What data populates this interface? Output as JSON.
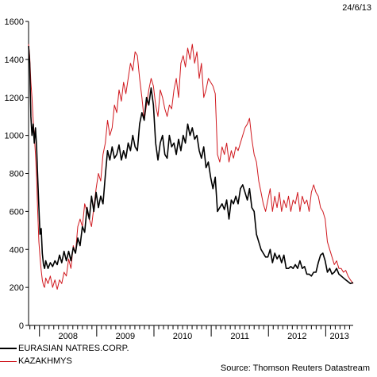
{
  "date_label": "24/6/13",
  "source": "Source: Thomson Reuters Datastream",
  "colors": {
    "series1": "#000000",
    "series2": "#d0181e"
  },
  "chart_data": {
    "type": "line",
    "title": "",
    "xlabel": "",
    "ylabel": "",
    "ylim": [
      0,
      1600
    ],
    "yticks": [
      0,
      200,
      400,
      600,
      800,
      1000,
      1200,
      1400,
      1600
    ],
    "xlim": [
      2007.81,
      2013.48
    ],
    "x_tick_labels": [
      "2008",
      "2009",
      "2010",
      "2011",
      "2012",
      "2013"
    ],
    "x_tick_positions": [
      2008.0,
      2009.0,
      2010.0,
      2011.0,
      2012.0,
      2013.0
    ],
    "grid": false,
    "legend": "bottom-left",
    "series": [
      {
        "name": "EURASIAN NATRES.CORP.",
        "color": "#000000",
        "points": [
          [
            2007.81,
            1470
          ],
          [
            2007.83,
            1380
          ],
          [
            2007.85,
            1100
          ],
          [
            2007.87,
            1000
          ],
          [
            2007.89,
            1060
          ],
          [
            2007.91,
            960
          ],
          [
            2007.93,
            1040
          ],
          [
            2007.95,
            940
          ],
          [
            2007.97,
            780
          ],
          [
            2007.99,
            620
          ],
          [
            2008.01,
            480
          ],
          [
            2008.03,
            510
          ],
          [
            2008.05,
            380
          ],
          [
            2008.07,
            320
          ],
          [
            2008.09,
            300
          ],
          [
            2008.11,
            340
          ],
          [
            2008.15,
            300
          ],
          [
            2008.19,
            330
          ],
          [
            2008.23,
            310
          ],
          [
            2008.27,
            340
          ],
          [
            2008.31,
            320
          ],
          [
            2008.35,
            370
          ],
          [
            2008.39,
            330
          ],
          [
            2008.43,
            390
          ],
          [
            2008.47,
            340
          ],
          [
            2008.51,
            390
          ],
          [
            2008.55,
            340
          ],
          [
            2008.59,
            410
          ],
          [
            2008.63,
            380
          ],
          [
            2008.67,
            460
          ],
          [
            2008.71,
            420
          ],
          [
            2008.75,
            520
          ],
          [
            2008.79,
            490
          ],
          [
            2008.83,
            620
          ],
          [
            2008.87,
            560
          ],
          [
            2008.91,
            680
          ],
          [
            2008.95,
            600
          ],
          [
            2008.99,
            700
          ],
          [
            2009.03,
            620
          ],
          [
            2009.07,
            680
          ],
          [
            2009.11,
            640
          ],
          [
            2009.15,
            790
          ],
          [
            2009.19,
            920
          ],
          [
            2009.23,
            870
          ],
          [
            2009.27,
            940
          ],
          [
            2009.31,
            880
          ],
          [
            2009.35,
            900
          ],
          [
            2009.39,
            950
          ],
          [
            2009.43,
            870
          ],
          [
            2009.47,
            920
          ],
          [
            2009.51,
            880
          ],
          [
            2009.55,
            960
          ],
          [
            2009.59,
            920
          ],
          [
            2009.63,
            1000
          ],
          [
            2009.67,
            940
          ],
          [
            2009.71,
            920
          ],
          [
            2009.75,
            1060
          ],
          [
            2009.79,
            1120
          ],
          [
            2009.83,
            1080
          ],
          [
            2009.87,
            1200
          ],
          [
            2009.91,
            1160
          ],
          [
            2009.95,
            1250
          ],
          [
            2009.99,
            1160
          ],
          [
            2010.03,
            960
          ],
          [
            2010.07,
            870
          ],
          [
            2010.11,
            960
          ],
          [
            2010.15,
            1000
          ],
          [
            2010.19,
            900
          ],
          [
            2010.23,
            880
          ],
          [
            2010.27,
            1000
          ],
          [
            2010.31,
            940
          ],
          [
            2010.35,
            960
          ],
          [
            2010.39,
            900
          ],
          [
            2010.43,
            980
          ],
          [
            2010.47,
            920
          ],
          [
            2010.51,
            1000
          ],
          [
            2010.55,
            960
          ],
          [
            2010.59,
            1060
          ],
          [
            2010.63,
            1000
          ],
          [
            2010.67,
            1040
          ],
          [
            2010.71,
            980
          ],
          [
            2010.75,
            1000
          ],
          [
            2010.79,
            920
          ],
          [
            2010.83,
            880
          ],
          [
            2010.87,
            940
          ],
          [
            2010.91,
            830
          ],
          [
            2010.95,
            860
          ],
          [
            2010.99,
            780
          ],
          [
            2011.03,
            720
          ],
          [
            2011.07,
            780
          ],
          [
            2011.11,
            600
          ],
          [
            2011.15,
            620
          ],
          [
            2011.19,
            640
          ],
          [
            2011.23,
            610
          ],
          [
            2011.27,
            660
          ],
          [
            2011.31,
            560
          ],
          [
            2011.35,
            660
          ],
          [
            2011.39,
            640
          ],
          [
            2011.43,
            680
          ],
          [
            2011.47,
            640
          ],
          [
            2011.51,
            720
          ],
          [
            2011.55,
            740
          ],
          [
            2011.59,
            700
          ],
          [
            2011.63,
            660
          ],
          [
            2011.67,
            720
          ],
          [
            2011.71,
            620
          ],
          [
            2011.75,
            600
          ],
          [
            2011.79,
            480
          ],
          [
            2011.83,
            440
          ],
          [
            2011.87,
            400
          ],
          [
            2011.91,
            380
          ],
          [
            2011.95,
            360
          ],
          [
            2011.99,
            360
          ],
          [
            2012.03,
            400
          ],
          [
            2012.07,
            330
          ],
          [
            2012.11,
            380
          ],
          [
            2012.15,
            350
          ],
          [
            2012.19,
            370
          ],
          [
            2012.23,
            330
          ],
          [
            2012.27,
            370
          ],
          [
            2012.31,
            300
          ],
          [
            2012.35,
            300
          ],
          [
            2012.39,
            310
          ],
          [
            2012.43,
            300
          ],
          [
            2012.47,
            320
          ],
          [
            2012.51,
            300
          ],
          [
            2012.55,
            340
          ],
          [
            2012.59,
            300
          ],
          [
            2012.63,
            310
          ],
          [
            2012.67,
            270
          ],
          [
            2012.71,
            270
          ],
          [
            2012.75,
            260
          ],
          [
            2012.79,
            280
          ],
          [
            2012.83,
            280
          ],
          [
            2012.87,
            330
          ],
          [
            2012.91,
            370
          ],
          [
            2012.95,
            380
          ],
          [
            2012.99,
            340
          ],
          [
            2013.03,
            280
          ],
          [
            2013.07,
            300
          ],
          [
            2013.11,
            270
          ],
          [
            2013.15,
            280
          ],
          [
            2013.19,
            300
          ],
          [
            2013.23,
            270
          ],
          [
            2013.27,
            260
          ],
          [
            2013.31,
            250
          ],
          [
            2013.35,
            240
          ],
          [
            2013.39,
            230
          ],
          [
            2013.43,
            220
          ],
          [
            2013.48,
            225
          ]
        ]
      },
      {
        "name": "KAZAKHMYS",
        "color": "#d0181e",
        "points": [
          [
            2007.81,
            1480
          ],
          [
            2007.83,
            1420
          ],
          [
            2007.85,
            1280
          ],
          [
            2007.87,
            1200
          ],
          [
            2007.89,
            1080
          ],
          [
            2007.91,
            1000
          ],
          [
            2007.93,
            900
          ],
          [
            2007.95,
            780
          ],
          [
            2007.97,
            600
          ],
          [
            2007.99,
            440
          ],
          [
            2008.01,
            360
          ],
          [
            2008.03,
            290
          ],
          [
            2008.05,
            240
          ],
          [
            2008.07,
            210
          ],
          [
            2008.09,
            200
          ],
          [
            2008.11,
            250
          ],
          [
            2008.15,
            220
          ],
          [
            2008.19,
            260
          ],
          [
            2008.23,
            200
          ],
          [
            2008.27,
            240
          ],
          [
            2008.31,
            190
          ],
          [
            2008.35,
            240
          ],
          [
            2008.39,
            220
          ],
          [
            2008.43,
            280
          ],
          [
            2008.47,
            260
          ],
          [
            2008.51,
            350
          ],
          [
            2008.55,
            300
          ],
          [
            2008.59,
            420
          ],
          [
            2008.63,
            380
          ],
          [
            2008.67,
            520
          ],
          [
            2008.71,
            560
          ],
          [
            2008.75,
            520
          ],
          [
            2008.79,
            640
          ],
          [
            2008.83,
            600
          ],
          [
            2008.87,
            560
          ],
          [
            2008.91,
            520
          ],
          [
            2008.95,
            620
          ],
          [
            2008.99,
            720
          ],
          [
            2009.03,
            800
          ],
          [
            2009.07,
            760
          ],
          [
            2009.11,
            900
          ],
          [
            2009.15,
            960
          ],
          [
            2009.19,
            1080
          ],
          [
            2009.23,
            1000
          ],
          [
            2009.27,
            1040
          ],
          [
            2009.31,
            1160
          ],
          [
            2009.35,
            1120
          ],
          [
            2009.39,
            1240
          ],
          [
            2009.43,
            1180
          ],
          [
            2009.47,
            1280
          ],
          [
            2009.51,
            1220
          ],
          [
            2009.55,
            1300
          ],
          [
            2009.59,
            1380
          ],
          [
            2009.63,
            1340
          ],
          [
            2009.67,
            1440
          ],
          [
            2009.71,
            1420
          ],
          [
            2009.75,
            1300
          ],
          [
            2009.79,
            1200
          ],
          [
            2009.83,
            1080
          ],
          [
            2009.87,
            1160
          ],
          [
            2009.91,
            1240
          ],
          [
            2009.95,
            1300
          ],
          [
            2009.99,
            1260
          ],
          [
            2010.03,
            1160
          ],
          [
            2010.07,
            1100
          ],
          [
            2010.11,
            1240
          ],
          [
            2010.15,
            1200
          ],
          [
            2010.19,
            1140
          ],
          [
            2010.23,
            1100
          ],
          [
            2010.27,
            1160
          ],
          [
            2010.31,
            1140
          ],
          [
            2010.35,
            1240
          ],
          [
            2010.39,
            1300
          ],
          [
            2010.43,
            1200
          ],
          [
            2010.47,
            1380
          ],
          [
            2010.51,
            1420
          ],
          [
            2010.55,
            1360
          ],
          [
            2010.59,
            1460
          ],
          [
            2010.63,
            1400
          ],
          [
            2010.67,
            1480
          ],
          [
            2010.71,
            1380
          ],
          [
            2010.75,
            1440
          ],
          [
            2010.79,
            1300
          ],
          [
            2010.83,
            1380
          ],
          [
            2010.87,
            1200
          ],
          [
            2010.91,
            1240
          ],
          [
            2010.95,
            1300
          ],
          [
            2010.99,
            1280
          ],
          [
            2011.03,
            1260
          ],
          [
            2011.07,
            1220
          ],
          [
            2011.11,
            900
          ],
          [
            2011.15,
            860
          ],
          [
            2011.19,
            940
          ],
          [
            2011.23,
            900
          ],
          [
            2011.27,
            960
          ],
          [
            2011.31,
            860
          ],
          [
            2011.35,
            920
          ],
          [
            2011.39,
            880
          ],
          [
            2011.43,
            940
          ],
          [
            2011.47,
            920
          ],
          [
            2011.51,
            960
          ],
          [
            2011.55,
            1000
          ],
          [
            2011.59,
            1040
          ],
          [
            2011.63,
            1060
          ],
          [
            2011.67,
            1090
          ],
          [
            2011.71,
            980
          ],
          [
            2011.75,
            900
          ],
          [
            2011.79,
            860
          ],
          [
            2011.83,
            760
          ],
          [
            2011.87,
            700
          ],
          [
            2011.91,
            640
          ],
          [
            2011.95,
            600
          ],
          [
            2011.99,
            660
          ],
          [
            2012.03,
            720
          ],
          [
            2012.07,
            600
          ],
          [
            2012.11,
            680
          ],
          [
            2012.15,
            620
          ],
          [
            2012.19,
            700
          ],
          [
            2012.23,
            600
          ],
          [
            2012.27,
            660
          ],
          [
            2012.31,
            620
          ],
          [
            2012.35,
            680
          ],
          [
            2012.39,
            600
          ],
          [
            2012.43,
            660
          ],
          [
            2012.47,
            640
          ],
          [
            2012.51,
            700
          ],
          [
            2012.55,
            600
          ],
          [
            2012.59,
            680
          ],
          [
            2012.63,
            640
          ],
          [
            2012.67,
            660
          ],
          [
            2012.71,
            600
          ],
          [
            2012.75,
            700
          ],
          [
            2012.79,
            740
          ],
          [
            2012.83,
            700
          ],
          [
            2012.87,
            680
          ],
          [
            2012.91,
            620
          ],
          [
            2012.95,
            600
          ],
          [
            2012.99,
            560
          ],
          [
            2013.03,
            440
          ],
          [
            2013.07,
            400
          ],
          [
            2013.11,
            360
          ],
          [
            2013.15,
            320
          ],
          [
            2013.19,
            340
          ],
          [
            2013.23,
            300
          ],
          [
            2013.27,
            300
          ],
          [
            2013.31,
            280
          ],
          [
            2013.35,
            290
          ],
          [
            2013.39,
            260
          ],
          [
            2013.43,
            240
          ],
          [
            2013.48,
            220
          ]
        ]
      }
    ]
  }
}
